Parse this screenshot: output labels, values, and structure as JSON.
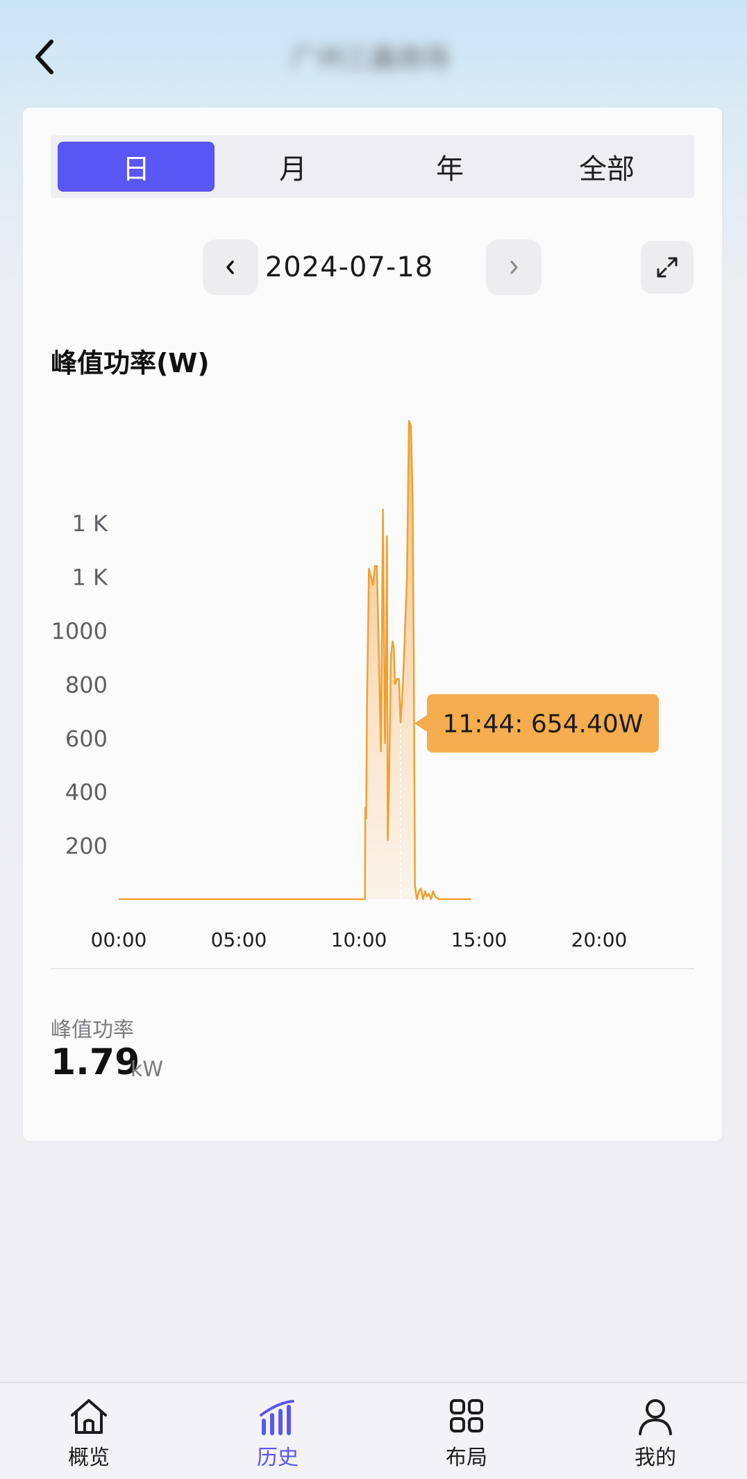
{
  "header": {
    "title": "广州三鑫商场"
  },
  "tabs": [
    {
      "label": "日",
      "active": true
    },
    {
      "label": "月",
      "active": false
    },
    {
      "label": "年",
      "active": false
    },
    {
      "label": "全部",
      "active": false
    }
  ],
  "date_nav": {
    "date": "2024-07-18",
    "prev_icon": "chevron-left-icon",
    "next_icon": "chevron-right-icon",
    "expand_icon": "expand-icon"
  },
  "chart_title": "峰值功率(W)",
  "chart_data": {
    "type": "area",
    "title": "峰值功率(W)",
    "xlabel": "",
    "ylabel": "",
    "x_ticks": [
      "00:00",
      "05:00",
      "10:00",
      "15:00",
      "20:00"
    ],
    "y_ticks": [
      "200",
      "400",
      "600",
      "800",
      "1000",
      "1 K",
      "1 K"
    ],
    "y_tick_values": [
      200,
      400,
      600,
      800,
      1000,
      1200,
      1400
    ],
    "ylim": [
      0,
      1800
    ],
    "xlim_hours": [
      0,
      22
    ],
    "grid": false,
    "series": [
      {
        "color": "#f0a030",
        "x": [
          "10:15",
          "10:16",
          "10:18",
          "10:20",
          "10:25",
          "10:30",
          "10:35",
          "10:40",
          "10:45",
          "10:50",
          "10:55",
          "11:00",
          "11:05",
          "11:08",
          "11:10",
          "11:12",
          "11:15",
          "11:20",
          "11:24",
          "11:27",
          "11:30",
          "11:35",
          "11:40",
          "11:44",
          "11:50",
          "11:55",
          "12:00",
          "12:05",
          "12:10",
          "12:14",
          "12:17",
          "12:20",
          "12:25",
          "12:30",
          "12:35",
          "12:40",
          "12:45",
          "12:50",
          "12:55",
          "13:00",
          "13:05",
          "13:10",
          "13:20",
          "13:30",
          "13:40",
          "13:50",
          "14:00",
          "14:10",
          "14:20",
          "14:30",
          "14:40"
        ],
        "y": [
          0,
          340,
          300,
          700,
          1230,
          1200,
          1170,
          1240,
          1240,
          900,
          550,
          1450,
          580,
          880,
          1350,
          220,
          420,
          900,
          960,
          940,
          800,
          820,
          820,
          654.4,
          800,
          1000,
          1200,
          1780,
          1760,
          1500,
          900,
          50,
          0,
          30,
          40,
          0,
          30,
          10,
          20,
          0,
          30,
          10,
          0,
          0,
          0,
          0,
          0,
          0,
          0,
          0,
          0
        ],
        "x_full_day_start": "00:00"
      }
    ],
    "tooltip": {
      "label": "11:44: 654.40W",
      "x": "11:44",
      "y": 654.4
    }
  },
  "stats": {
    "label": "峰值功率",
    "value": "1.79",
    "unit": "kW"
  },
  "bottom_nav": [
    {
      "label": "概览",
      "icon": "home-icon",
      "active": false
    },
    {
      "label": "历史",
      "icon": "history-chart-icon",
      "active": true
    },
    {
      "label": "布局",
      "icon": "grid-icon",
      "active": false
    },
    {
      "label": "我的",
      "icon": "user-icon",
      "active": false
    }
  ],
  "colors": {
    "accent": "#5a55f5",
    "series": "#f0a030",
    "tooltip_bg": "#f5ad4f"
  }
}
